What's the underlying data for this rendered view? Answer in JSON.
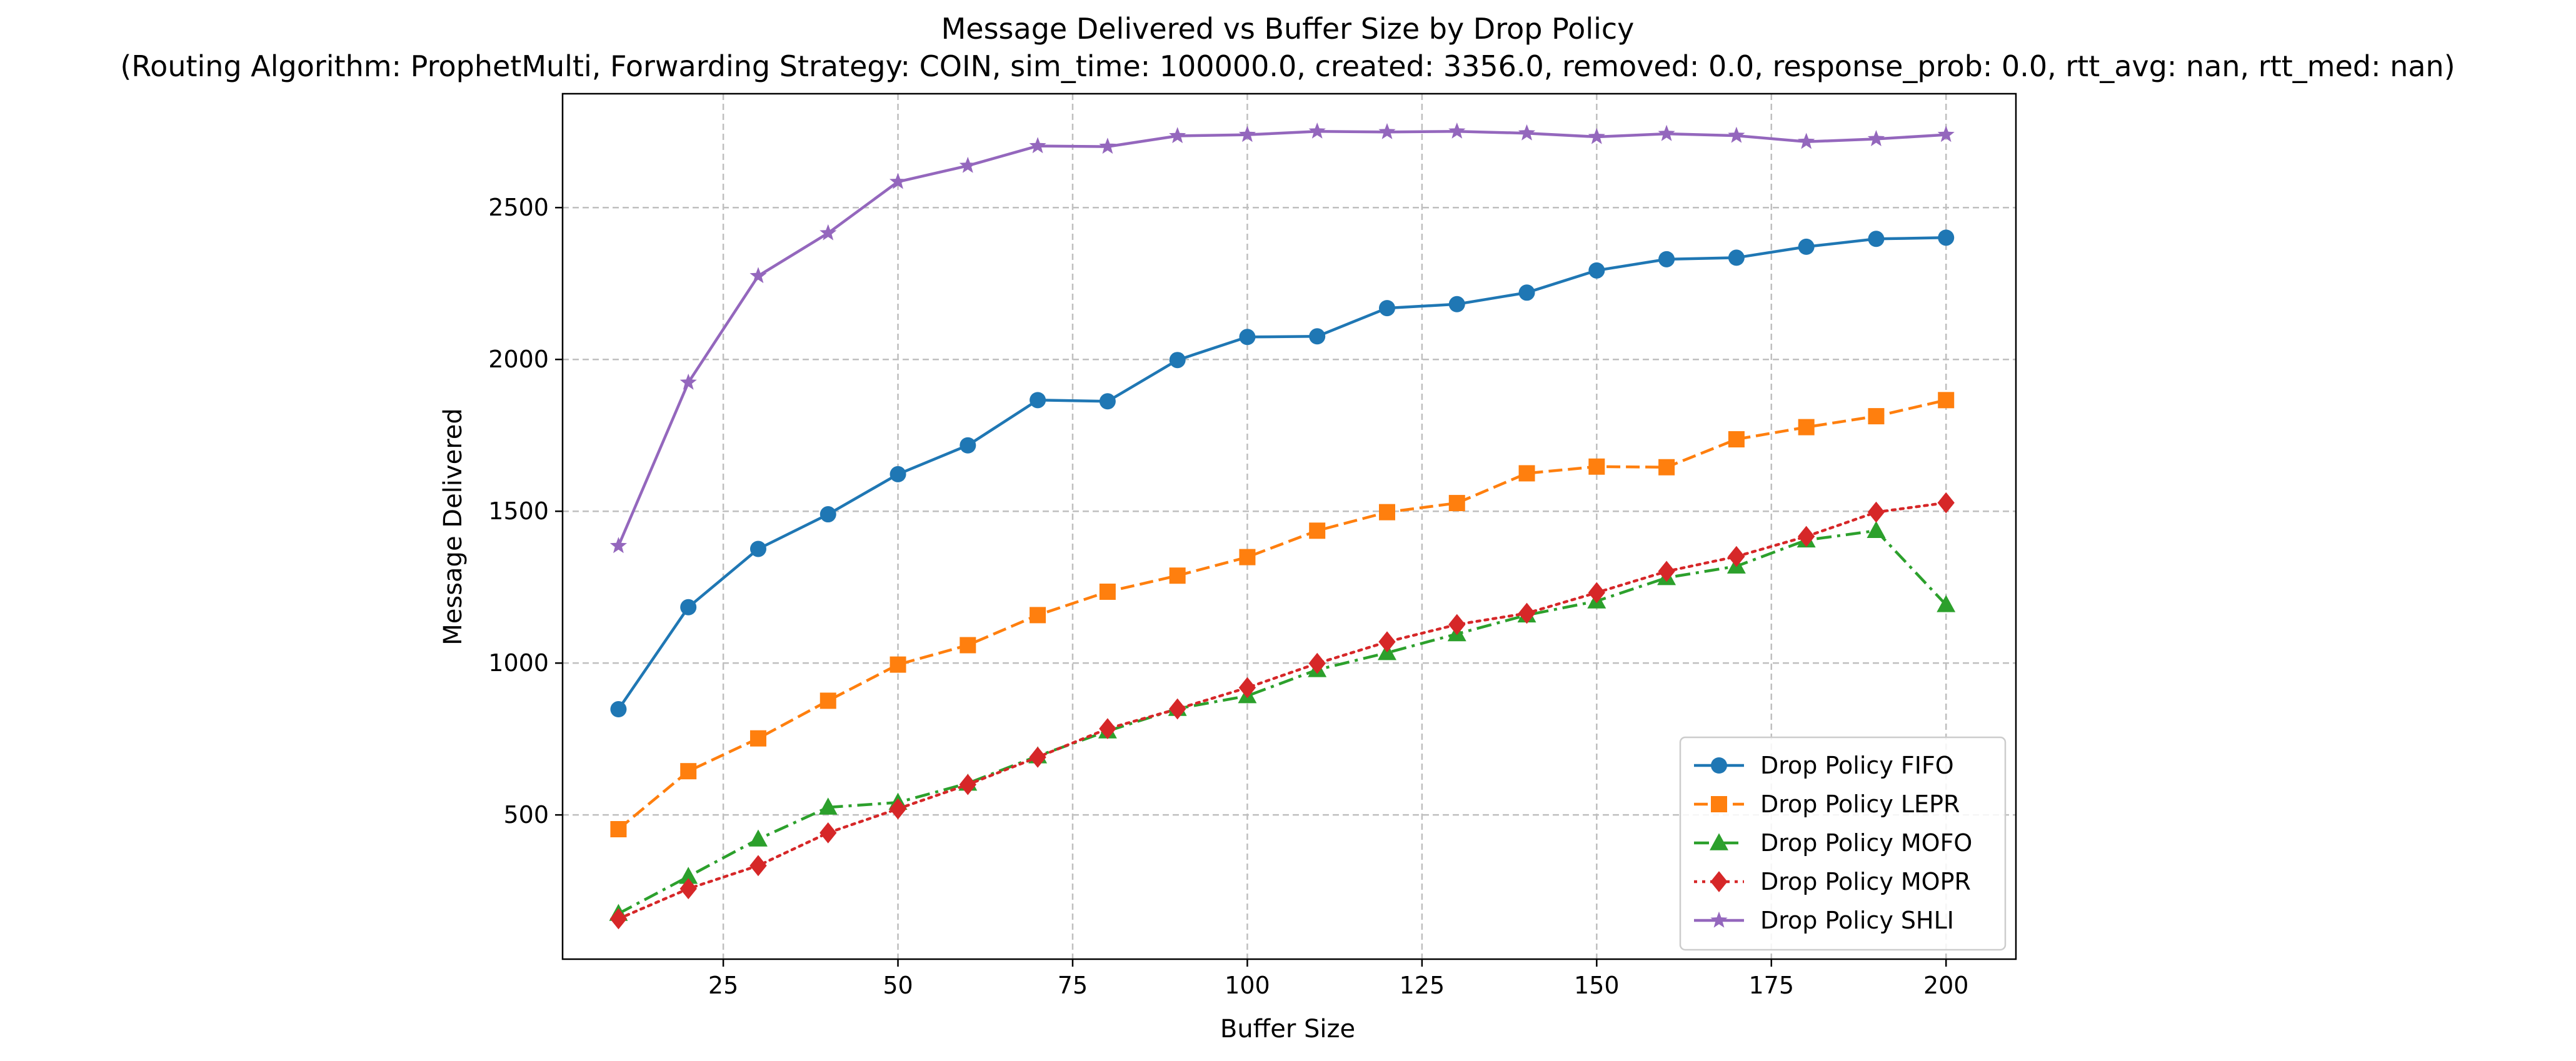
{
  "chart_data": {
    "type": "line",
    "title": "Message Delivered vs Buffer Size by Drop Policy",
    "subtitle": "(Routing Algorithm: ProphetMulti, Forwarding Strategy: COIN, sim_time: 100000.0, created: 3356.0, removed: 0.0, response_prob: 0.0, rtt_avg: nan, rtt_med: nan)",
    "xlabel": "Buffer Size",
    "ylabel": "Message Delivered",
    "xlim": [
      2,
      210
    ],
    "ylim": [
      25,
      2875
    ],
    "xticks": [
      25,
      50,
      75,
      100,
      125,
      150,
      175,
      200
    ],
    "yticks": [
      500,
      1000,
      1500,
      2000,
      2500
    ],
    "grid": true,
    "legend_position": "lower right",
    "x": [
      10,
      20,
      30,
      40,
      50,
      60,
      70,
      80,
      90,
      100,
      110,
      120,
      130,
      140,
      150,
      160,
      170,
      180,
      190,
      200
    ],
    "series": [
      {
        "name": "Drop Policy FIFO",
        "color": "#1f77b4",
        "marker": "circle",
        "linestyle": "solid",
        "values": [
          848,
          1184,
          1376,
          1490,
          1622,
          1717,
          1866,
          1862,
          1998,
          2074,
          2076,
          2169,
          2182,
          2220,
          2293,
          2330,
          2335,
          2371,
          2397,
          2401
        ]
      },
      {
        "name": "Drop Policy LEPR",
        "color": "#ff7f0e",
        "marker": "square",
        "linestyle": "dashed",
        "values": [
          453,
          644,
          752,
          876,
          995,
          1059,
          1158,
          1235,
          1288,
          1349,
          1436,
          1497,
          1527,
          1625,
          1647,
          1645,
          1737,
          1777,
          1813,
          1866
        ]
      },
      {
        "name": "Drop Policy MOFO",
        "color": "#2ca02c",
        "marker": "triangle",
        "linestyle": "dashdot",
        "values": [
          175,
          297,
          420,
          525,
          541,
          604,
          694,
          776,
          850,
          892,
          978,
          1034,
          1096,
          1158,
          1204,
          1281,
          1319,
          1405,
          1436,
          1192
        ]
      },
      {
        "name": "Drop Policy MOPR",
        "color": "#d62728",
        "marker": "diamond",
        "linestyle": "dotted",
        "values": [
          158,
          257,
          333,
          441,
          520,
          600,
          690,
          784,
          849,
          919,
          999,
          1070,
          1127,
          1164,
          1232,
          1302,
          1351,
          1417,
          1497,
          1528
        ]
      },
      {
        "name": "Drop Policy SHLI",
        "color": "#9467bd",
        "marker": "star",
        "linestyle": "solid",
        "values": [
          1386,
          1924,
          2275,
          2416,
          2585,
          2638,
          2703,
          2701,
          2736,
          2740,
          2751,
          2749,
          2751,
          2745,
          2733,
          2743,
          2737,
          2717,
          2726,
          2740
        ]
      }
    ]
  }
}
